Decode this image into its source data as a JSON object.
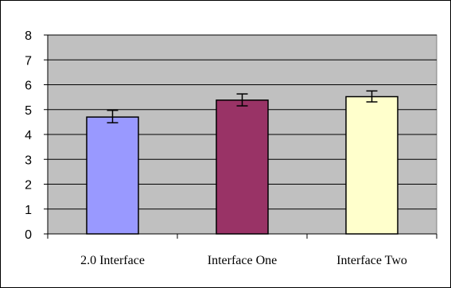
{
  "colors": {
    "plot_background": "#c0c0c0",
    "gridline": "#000000",
    "axis": "#000000",
    "frame_border": "#000000",
    "error_bar": "#000000"
  },
  "chart_data": {
    "type": "bar",
    "title": "",
    "xlabel": "",
    "ylabel": "",
    "ylim": [
      0,
      8
    ],
    "yticks": [
      0,
      1,
      2,
      3,
      4,
      5,
      6,
      7,
      8
    ],
    "grid": true,
    "legend": "none",
    "categories": [
      "2.0 Interface",
      "Interface One",
      "Interface Two"
    ],
    "values": [
      4.7,
      5.38,
      5.52
    ],
    "error_low": [
      4.47,
      5.15,
      5.31
    ],
    "error_high": [
      4.97,
      5.63,
      5.75
    ],
    "bar_colors": [
      "#9999ff",
      "#993366",
      "#ffffcc"
    ]
  }
}
